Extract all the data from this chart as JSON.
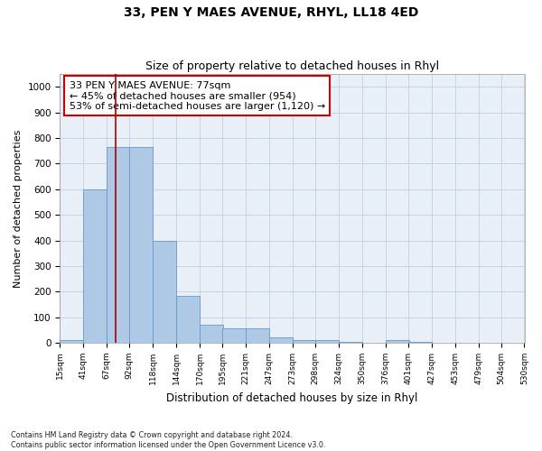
{
  "title": "33, PEN Y MAES AVENUE, RHYL, LL18 4ED",
  "subtitle": "Size of property relative to detached houses in Rhyl",
  "xlabel": "Distribution of detached houses by size in Rhyl",
  "ylabel": "Number of detached properties",
  "footer_line1": "Contains HM Land Registry data © Crown copyright and database right 2024.",
  "footer_line2": "Contains public sector information licensed under the Open Government Licence v3.0.",
  "annotation_line1": "33 PEN Y MAES AVENUE: 77sqm",
  "annotation_line2": "← 45% of detached houses are smaller (954)",
  "annotation_line3": "53% of semi-detached houses are larger (1,120) →",
  "property_size": 77,
  "bin_edges": [
    15,
    41,
    67,
    92,
    118,
    144,
    170,
    195,
    221,
    247,
    273,
    298,
    324,
    350,
    376,
    401,
    427,
    453,
    479,
    504,
    530
  ],
  "bar_heights": [
    10,
    600,
    765,
    765,
    400,
    185,
    70,
    55,
    55,
    20,
    10,
    10,
    5,
    0,
    10,
    5,
    0,
    0,
    0,
    0
  ],
  "bar_color": "#adc9e6",
  "bar_edgecolor": "#6699cc",
  "redline_color": "#aa0000",
  "grid_color": "#c5d5e5",
  "bg_color": "#e8eff7",
  "ylim": [
    0,
    1050
  ],
  "yticks": [
    0,
    100,
    200,
    300,
    400,
    500,
    600,
    700,
    800,
    900,
    1000
  ]
}
